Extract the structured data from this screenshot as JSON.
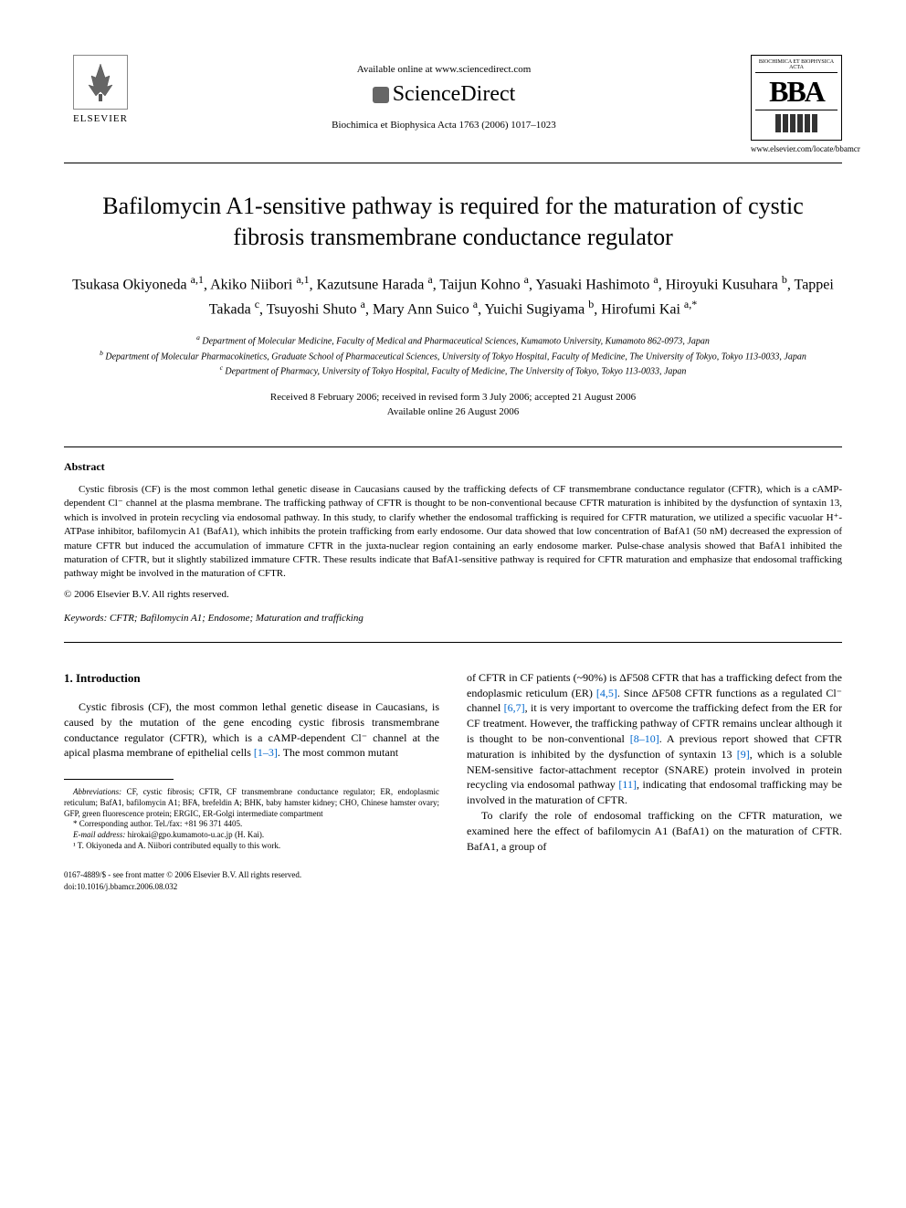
{
  "header": {
    "elsevier_label": "ELSEVIER",
    "available_online": "Available online at www.sciencedirect.com",
    "sciencedirect": "ScienceDirect",
    "journal_ref": "Biochimica et Biophysica Acta 1763 (2006) 1017–1023",
    "bba_top": "BIOCHIMICA ET BIOPHYSICA ACTA",
    "bba_letters": "BBA",
    "bba_url": "www.elsevier.com/locate/bbamcr"
  },
  "title": "Bafilomycin A1-sensitive pathway is required for the maturation of cystic fibrosis transmembrane conductance regulator",
  "authors_html": "Tsukasa Okiyoneda <sup>a,1</sup>, Akiko Niibori <sup>a,1</sup>, Kazutsune Harada <sup>a</sup>, Taijun Kohno <sup>a</sup>, Yasuaki Hashimoto <sup>a</sup>, Hiroyuki Kusuhara <sup>b</sup>, Tappei Takada <sup>c</sup>, Tsuyoshi Shuto <sup>a</sup>, Mary Ann Suico <sup>a</sup>, Yuichi Sugiyama <sup>b</sup>, Hirofumi Kai <sup>a,*</sup>",
  "affiliations": {
    "a": "Department of Molecular Medicine, Faculty of Medical and Pharmaceutical Sciences, Kumamoto University, Kumamoto 862-0973, Japan",
    "b": "Department of Molecular Pharmacokinetics, Graduate School of Pharmaceutical Sciences, University of Tokyo Hospital, Faculty of Medicine, The University of Tokyo, Tokyo 113-0033, Japan",
    "c": "Department of Pharmacy, University of Tokyo Hospital, Faculty of Medicine, The University of Tokyo, Tokyo 113-0033, Japan"
  },
  "dates": {
    "received": "Received 8 February 2006; received in revised form 3 July 2006; accepted 21 August 2006",
    "online": "Available online 26 August 2006"
  },
  "abstract": {
    "heading": "Abstract",
    "text": "Cystic fibrosis (CF) is the most common lethal genetic disease in Caucasians caused by the trafficking defects of CF transmembrane conductance regulator (CFTR), which is a cAMP-dependent Cl⁻ channel at the plasma membrane. The trafficking pathway of CFTR is thought to be non-conventional because CFTR maturation is inhibited by the dysfunction of syntaxin 13, which is involved in protein recycling via endosomal pathway. In this study, to clarify whether the endosomal trafficking is required for CFTR maturation, we utilized a specific vacuolar H⁺-ATPase inhibitor, bafilomycin A1 (BafA1), which inhibits the protein trafficking from early endosome. Our data showed that low concentration of BafA1 (50 nM) decreased the expression of mature CFTR but induced the accumulation of immature CFTR in the juxta-nuclear region containing an early endosome marker. Pulse-chase analysis showed that BafA1 inhibited the maturation of CFTR, but it slightly stabilized immature CFTR. These results indicate that BafA1-sensitive pathway is required for CFTR maturation and emphasize that endosomal trafficking pathway might be involved in the maturation of CFTR.",
    "copyright": "© 2006 Elsevier B.V. All rights reserved."
  },
  "keywords": {
    "label": "Keywords:",
    "text": "CFTR; Bafilomycin A1; Endosome; Maturation and trafficking"
  },
  "introduction": {
    "heading": "1. Introduction",
    "col1_para1_html": "Cystic fibrosis (CF), the most common lethal genetic disease in Caucasians, is caused by the mutation of the gene encoding cystic fibrosis transmembrane conductance regulator (CFTR), which is a cAMP-dependent Cl⁻ channel at the apical plasma membrane of epithelial cells <span class=\"ref-link\">[1–3]</span>. The most common mutant",
    "col2_para1_html": "of CFTR in CF patients (~90%) is ΔF508 CFTR that has a trafficking defect from the endoplasmic reticulum (ER) <span class=\"ref-link\">[4,5]</span>. Since ΔF508 CFTR functions as a regulated Cl⁻ channel <span class=\"ref-link\">[6,7]</span>, it is very important to overcome the trafficking defect from the ER for CF treatment. However, the trafficking pathway of CFTR remains unclear although it is thought to be non-conventional <span class=\"ref-link\">[8–10]</span>. A previous report showed that CFTR maturation is inhibited by the dysfunction of syntaxin 13 <span class=\"ref-link\">[9]</span>, which is a soluble NEM-sensitive factor-attachment receptor (SNARE) protein involved in protein recycling via endosomal pathway <span class=\"ref-link\">[11]</span>, indicating that endosomal trafficking may be involved in the maturation of CFTR.",
    "col2_para2_html": "To clarify the role of endosomal trafficking on the CFTR maturation, we examined here the effect of bafilomycin A1 (BafA1) on the maturation of CFTR. BafA1, a group of"
  },
  "footnotes": {
    "abbrev_label": "Abbreviations:",
    "abbrev_text": "CF, cystic fibrosis; CFTR, CF transmembrane conductance regulator; ER, endoplasmic reticulum; BafA1, bafilomycin A1; BFA, brefeldin A; BHK, baby hamster kidney; CHO, Chinese hamster ovary; GFP, green fluorescence protein; ERGIC, ER-Golgi intermediate compartment",
    "corresponding": "* Corresponding author. Tel./fax: +81 96 371 4405.",
    "email_label": "E-mail address:",
    "email": "hirokai@gpo.kumamoto-u.ac.jp",
    "email_suffix": "(H. Kai).",
    "equal": "¹ T. Okiyoneda and A. Niibori contributed equally to this work."
  },
  "bottom": {
    "issn": "0167-4889/$ - see front matter © 2006 Elsevier B.V. All rights reserved.",
    "doi": "doi:10.1016/j.bbamcr.2006.08.032"
  },
  "colors": {
    "text": "#000000",
    "link": "#0066cc",
    "background": "#ffffff"
  }
}
